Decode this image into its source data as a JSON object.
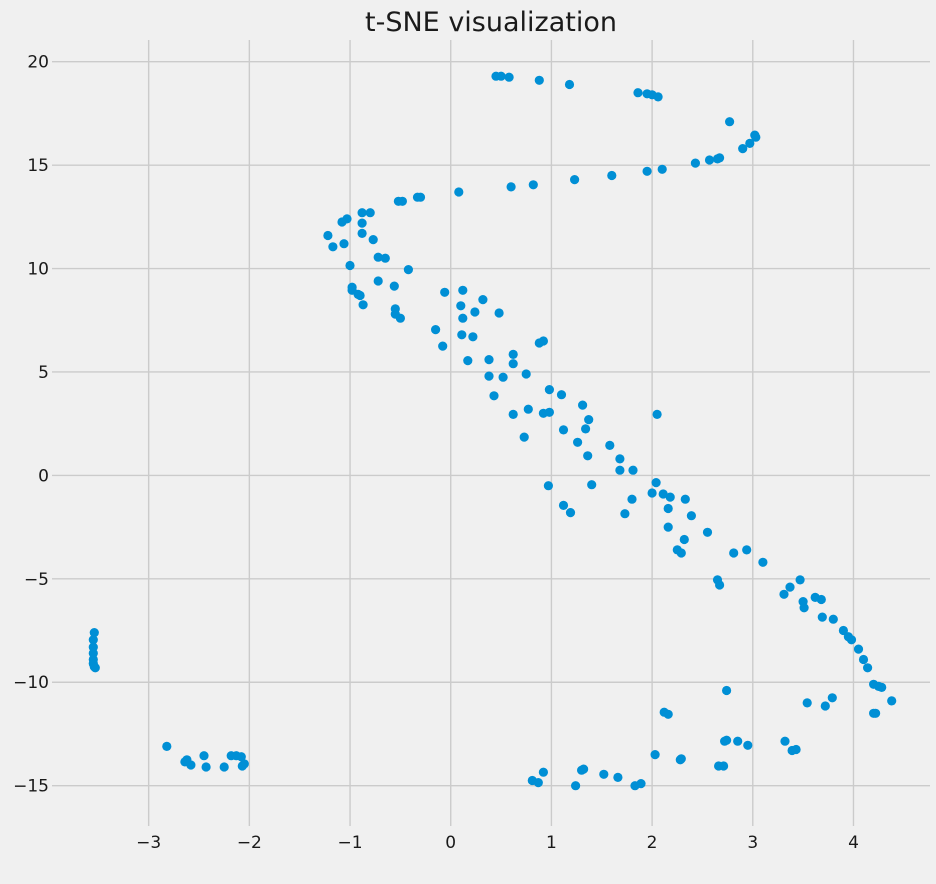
{
  "chart_data": {
    "type": "scatter",
    "title": "t-SNE visualization",
    "xlabel": "",
    "ylabel": "",
    "xlim": [
      -3.96,
      4.76
    ],
    "ylim": [
      -16.95,
      21.05
    ],
    "xticks": [
      -3,
      -2,
      -1,
      0,
      1,
      2,
      3,
      4
    ],
    "yticks": [
      -15,
      -10,
      -5,
      0,
      5,
      10,
      15,
      20
    ],
    "xtick_labels": [
      "−3",
      "−2",
      "−1",
      "0",
      "1",
      "2",
      "3",
      "4"
    ],
    "ytick_labels": [
      "−15",
      "−10",
      "−5",
      "0",
      "5",
      "10",
      "15",
      "20"
    ],
    "grid": true,
    "background": "#f0f0f0",
    "grid_color": "#cbcbcb",
    "point_color": "#008fd5",
    "series": [
      {
        "points": [
          [
            0.45,
            19.3
          ],
          [
            0.5,
            19.3
          ],
          [
            0.58,
            19.25
          ],
          [
            0.88,
            19.1
          ],
          [
            1.18,
            18.9
          ],
          [
            1.86,
            18.5
          ],
          [
            1.95,
            18.45
          ],
          [
            2.0,
            18.4
          ],
          [
            2.06,
            18.3
          ],
          [
            2.77,
            17.1
          ],
          [
            3.02,
            16.45
          ],
          [
            3.03,
            16.35
          ],
          [
            2.97,
            16.05
          ],
          [
            2.9,
            15.8
          ],
          [
            2.67,
            15.35
          ],
          [
            2.65,
            15.3
          ],
          [
            2.57,
            15.25
          ],
          [
            2.43,
            15.1
          ],
          [
            2.1,
            14.8
          ],
          [
            1.95,
            14.7
          ],
          [
            1.6,
            14.5
          ],
          [
            1.23,
            14.3
          ],
          [
            0.82,
            14.05
          ],
          [
            0.6,
            13.95
          ],
          [
            0.08,
            13.7
          ],
          [
            -0.3,
            13.45
          ],
          [
            -0.33,
            13.45
          ],
          [
            -0.48,
            13.25
          ],
          [
            -0.52,
            13.25
          ],
          [
            -0.8,
            12.7
          ],
          [
            -0.88,
            12.7
          ],
          [
            -1.03,
            12.4
          ],
          [
            -1.08,
            12.25
          ],
          [
            -0.88,
            12.2
          ],
          [
            -0.88,
            11.7
          ],
          [
            -1.22,
            11.6
          ],
          [
            -0.77,
            11.4
          ],
          [
            -1.06,
            11.2
          ],
          [
            -1.17,
            11.05
          ],
          [
            -0.72,
            10.55
          ],
          [
            -0.65,
            10.5
          ],
          [
            -1.0,
            10.15
          ],
          [
            -0.42,
            9.95
          ],
          [
            -0.72,
            9.4
          ],
          [
            -0.56,
            9.15
          ],
          [
            -0.98,
            9.1
          ],
          [
            -0.98,
            8.95
          ],
          [
            -0.92,
            8.75
          ],
          [
            -0.9,
            8.7
          ],
          [
            0.12,
            8.95
          ],
          [
            -0.06,
            8.85
          ],
          [
            0.32,
            8.5
          ],
          [
            0.1,
            8.2
          ],
          [
            -0.87,
            8.25
          ],
          [
            -0.55,
            8.05
          ],
          [
            -0.55,
            7.8
          ],
          [
            0.48,
            7.85
          ],
          [
            0.24,
            7.9
          ],
          [
            -0.5,
            7.6
          ],
          [
            0.12,
            7.6
          ],
          [
            -0.15,
            7.05
          ],
          [
            0.11,
            6.8
          ],
          [
            0.22,
            6.7
          ],
          [
            0.92,
            6.5
          ],
          [
            0.88,
            6.4
          ],
          [
            -0.08,
            6.25
          ],
          [
            0.62,
            5.85
          ],
          [
            0.38,
            5.6
          ],
          [
            0.17,
            5.55
          ],
          [
            0.62,
            5.4
          ],
          [
            0.38,
            4.8
          ],
          [
            0.52,
            4.75
          ],
          [
            0.75,
            4.9
          ],
          [
            0.98,
            4.15
          ],
          [
            1.1,
            3.9
          ],
          [
            0.43,
            3.85
          ],
          [
            1.31,
            3.4
          ],
          [
            0.77,
            3.2
          ],
          [
            0.62,
            2.95
          ],
          [
            0.92,
            3.0
          ],
          [
            0.98,
            3.05
          ],
          [
            2.05,
            2.95
          ],
          [
            1.37,
            2.7
          ],
          [
            1.12,
            2.2
          ],
          [
            1.34,
            2.25
          ],
          [
            0.73,
            1.85
          ],
          [
            1.26,
            1.6
          ],
          [
            1.58,
            1.45
          ],
          [
            1.36,
            0.95
          ],
          [
            1.68,
            0.8
          ],
          [
            1.68,
            0.25
          ],
          [
            1.81,
            0.25
          ],
          [
            0.97,
            -0.5
          ],
          [
            1.4,
            -0.45
          ],
          [
            2.04,
            -0.35
          ],
          [
            2.0,
            -0.85
          ],
          [
            2.11,
            -0.9
          ],
          [
            2.18,
            -1.05
          ],
          [
            1.8,
            -1.15
          ],
          [
            2.33,
            -1.15
          ],
          [
            1.12,
            -1.45
          ],
          [
            1.19,
            -1.8
          ],
          [
            1.73,
            -1.85
          ],
          [
            2.16,
            -1.6
          ],
          [
            2.39,
            -1.95
          ],
          [
            2.16,
            -2.5
          ],
          [
            2.55,
            -2.75
          ],
          [
            2.32,
            -3.1
          ],
          [
            2.25,
            -3.6
          ],
          [
            2.29,
            -3.75
          ],
          [
            2.81,
            -3.75
          ],
          [
            2.94,
            -3.6
          ],
          [
            3.1,
            -4.2
          ],
          [
            2.65,
            -5.05
          ],
          [
            2.67,
            -5.3
          ],
          [
            3.47,
            -5.05
          ],
          [
            3.37,
            -5.4
          ],
          [
            3.31,
            -5.75
          ],
          [
            3.5,
            -6.1
          ],
          [
            3.51,
            -6.4
          ],
          [
            3.62,
            -5.9
          ],
          [
            3.68,
            -6.0
          ],
          [
            3.69,
            -6.85
          ],
          [
            3.8,
            -6.95
          ],
          [
            3.9,
            -7.5
          ],
          [
            3.95,
            -7.8
          ],
          [
            3.98,
            -7.95
          ],
          [
            4.05,
            -8.4
          ],
          [
            4.1,
            -8.9
          ],
          [
            4.14,
            -9.3
          ],
          [
            4.2,
            -10.1
          ],
          [
            4.25,
            -10.2
          ],
          [
            4.28,
            -10.25
          ],
          [
            4.38,
            -10.9
          ],
          [
            2.74,
            -10.4
          ],
          [
            3.54,
            -11.0
          ],
          [
            3.72,
            -11.15
          ],
          [
            3.79,
            -10.75
          ],
          [
            4.2,
            -11.5
          ],
          [
            4.22,
            -11.5
          ],
          [
            2.12,
            -11.45
          ],
          [
            2.16,
            -11.55
          ],
          [
            -3.54,
            -7.6
          ],
          [
            -3.55,
            -7.95
          ],
          [
            -3.55,
            -8.3
          ],
          [
            -3.55,
            -8.6
          ],
          [
            -3.55,
            -8.9
          ],
          [
            -3.55,
            -9.1
          ],
          [
            -3.54,
            -9.25
          ],
          [
            -3.53,
            -9.3
          ],
          [
            -2.82,
            -13.1
          ],
          [
            -2.62,
            -13.75
          ],
          [
            -2.64,
            -13.85
          ],
          [
            -2.58,
            -14.0
          ],
          [
            -2.45,
            -13.55
          ],
          [
            -2.43,
            -14.1
          ],
          [
            -2.25,
            -14.1
          ],
          [
            -2.18,
            -13.55
          ],
          [
            -2.13,
            -13.55
          ],
          [
            -2.08,
            -13.6
          ],
          [
            -2.05,
            -13.95
          ],
          [
            -2.07,
            -14.05
          ],
          [
            0.92,
            -14.35
          ],
          [
            1.3,
            -14.25
          ],
          [
            1.32,
            -14.2
          ],
          [
            1.52,
            -14.45
          ],
          [
            1.66,
            -14.6
          ],
          [
            0.81,
            -14.75
          ],
          [
            0.87,
            -14.85
          ],
          [
            1.24,
            -15.0
          ],
          [
            1.83,
            -15.0
          ],
          [
            1.89,
            -14.9
          ],
          [
            2.03,
            -13.5
          ],
          [
            2.28,
            -13.75
          ],
          [
            2.29,
            -13.7
          ],
          [
            2.66,
            -14.05
          ],
          [
            2.71,
            -14.05
          ],
          [
            2.72,
            -12.85
          ],
          [
            2.74,
            -12.8
          ],
          [
            2.85,
            -12.85
          ],
          [
            2.95,
            -13.05
          ],
          [
            3.32,
            -12.85
          ],
          [
            3.39,
            -13.3
          ],
          [
            3.43,
            -13.25
          ]
        ]
      }
    ]
  }
}
